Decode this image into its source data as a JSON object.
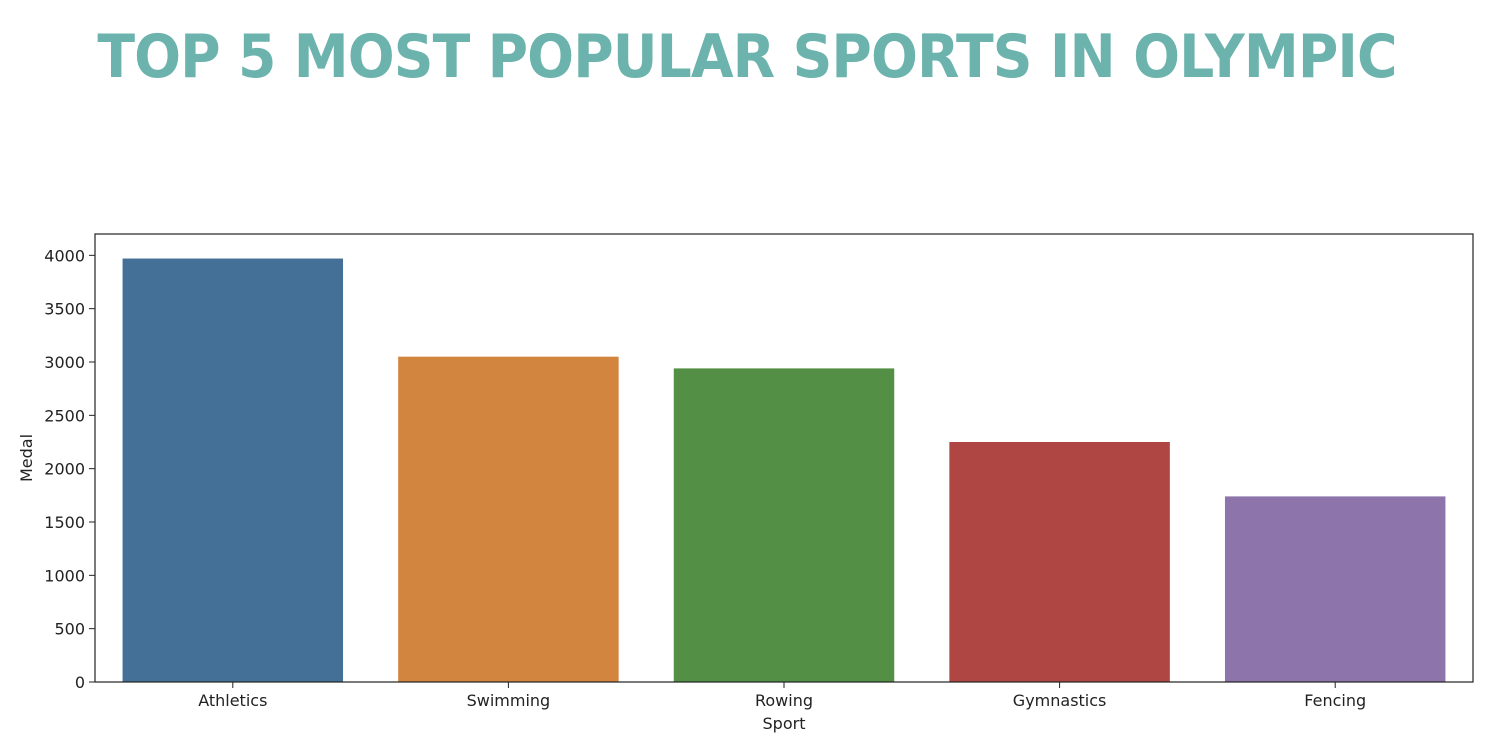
{
  "chart_data": {
    "type": "bar",
    "title": "TOP 5 MOST POPULAR SPORTS IN OLYMPIC",
    "xlabel": "Sport",
    "ylabel": "Medal",
    "categories": [
      "Athletics",
      "Swimming",
      "Rowing",
      "Gymnastics",
      "Fencing"
    ],
    "values": [
      3970,
      3050,
      2940,
      2250,
      1740
    ],
    "colors": [
      "#447098",
      "#d2853f",
      "#538f44",
      "#af4643",
      "#8d74ab"
    ],
    "ylim": [
      0,
      4200
    ],
    "yticks": [
      0,
      500,
      1000,
      1500,
      2000,
      2500,
      3000,
      3500,
      4000
    ],
    "grid": false,
    "legend": "none"
  }
}
